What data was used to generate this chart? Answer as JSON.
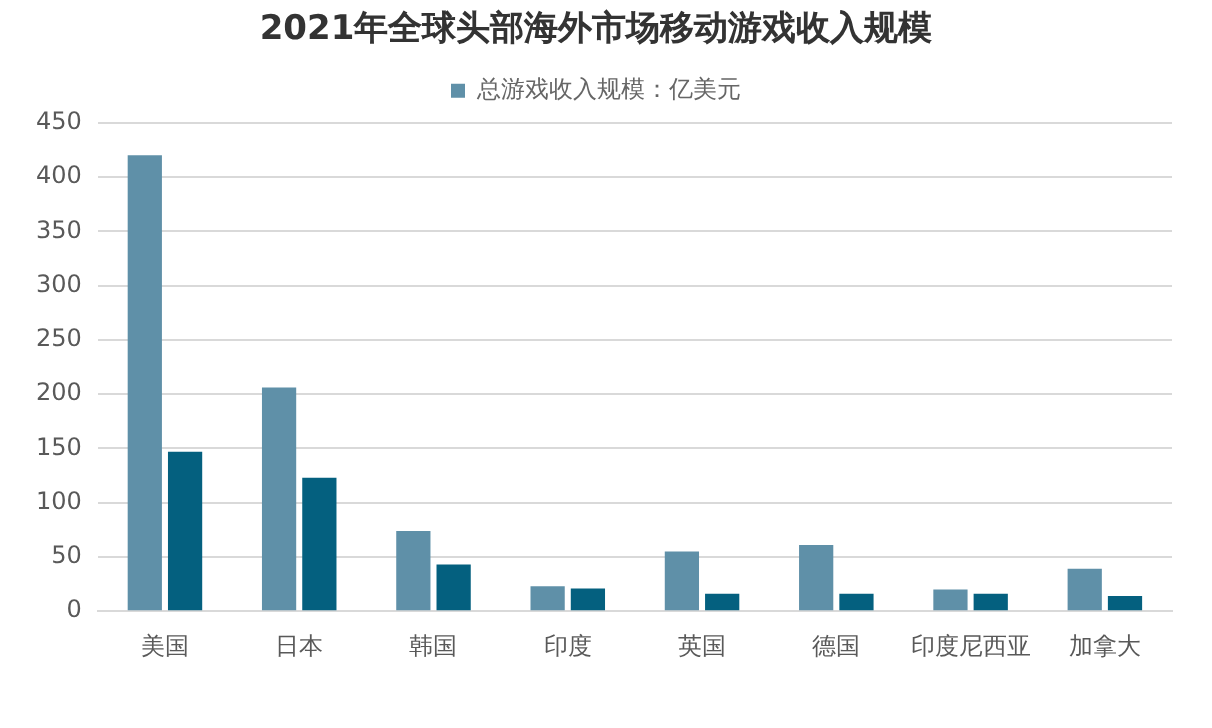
{
  "chart_data": {
    "type": "bar",
    "title": "2021年全球头部海外市场移动游戏收入规模",
    "categories": [
      "美国",
      "日本",
      "韩国",
      "印度",
      "英国",
      "德国",
      "印度尼西亚",
      "加拿大"
    ],
    "series": [
      {
        "name": "总游戏收入规模：亿美元",
        "color": "#5f90a8",
        "values": [
          420,
          206,
          74,
          23,
          55,
          61,
          20,
          39
        ]
      },
      {
        "color": "#04607f",
        "values": [
          147,
          123,
          43,
          21,
          16,
          16,
          16,
          14
        ]
      }
    ],
    "ylim": [
      0,
      450
    ],
    "yticks": [
      0,
      50,
      100,
      150,
      200,
      250,
      300,
      350,
      400,
      450
    ],
    "grid": "y",
    "legend": "top"
  }
}
